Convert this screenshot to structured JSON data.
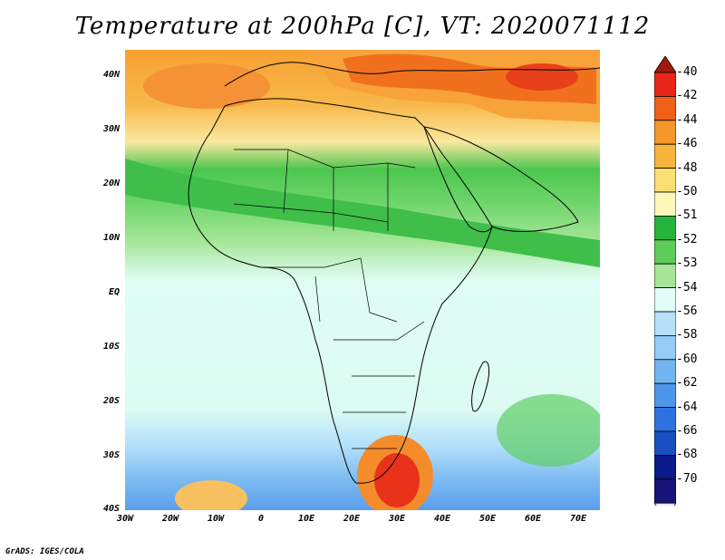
{
  "title": "Temperature at 200hPa [C], VT: 2020071112",
  "credit": "GrADS: IGES/COLA",
  "map": {
    "variable": "Temperature",
    "level": "200hPa",
    "units": "C",
    "valid_time": "2020071112",
    "lon_range": [
      -30,
      75
    ],
    "lat_range": [
      -40,
      45
    ],
    "lat_ticks": [
      "40N",
      "30N",
      "20N",
      "10N",
      "EQ",
      "10S",
      "20S",
      "30S",
      "40S"
    ],
    "lon_ticks": [
      "30W",
      "20W",
      "10W",
      "0",
      "10E",
      "20E",
      "30E",
      "40E",
      "50E",
      "60E",
      "70E"
    ]
  },
  "colorbar": {
    "labels": [
      "-40",
      "-42",
      "-44",
      "-46",
      "-48",
      "-50",
      "-51",
      "-52",
      "-53",
      "-54",
      "-56",
      "-58",
      "-60",
      "-62",
      "-64",
      "-66",
      "-68",
      "-70"
    ],
    "colors": [
      "#a01a0a",
      "#e8261a",
      "#f0601a",
      "#f5962a",
      "#f7b53c",
      "#fae072",
      "#fdf7b8",
      "#27b43c",
      "#5ccd5a",
      "#a5e797",
      "#e1fff8",
      "#b7e1fb",
      "#96cbf6",
      "#71b5f0",
      "#4d97eb",
      "#2d72e0",
      "#1a4fc2",
      "#0a1a8a",
      "#17147a",
      "#e8e6ff"
    ]
  }
}
